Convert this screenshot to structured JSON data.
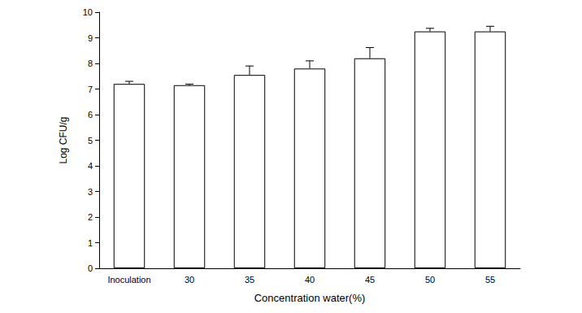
{
  "chart_data": {
    "type": "bar",
    "x_label": "Concentration water(%)",
    "y_label": "Log CFU/g",
    "categories": [
      "Inoculation",
      "30",
      "35",
      "40",
      "45",
      "50",
      "55"
    ],
    "values": [
      7.2,
      7.15,
      7.55,
      7.8,
      8.2,
      9.25,
      9.25
    ],
    "errors": [
      0.1,
      0.04,
      0.35,
      0.3,
      0.42,
      0.12,
      0.2
    ],
    "color": "#ffffff",
    "ylim": [
      0,
      10
    ],
    "yticks": [
      0,
      1,
      2,
      3,
      4,
      5,
      6,
      7,
      8,
      9,
      10
    ],
    "grid": false
  }
}
